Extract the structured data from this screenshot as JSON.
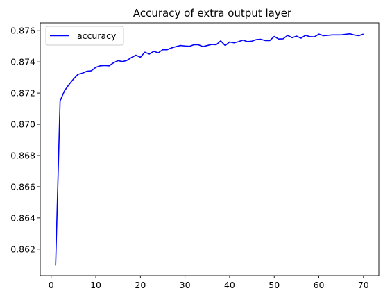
{
  "chart_data": {
    "type": "line",
    "title": "Accuracy of extra output layer",
    "xlabel": "",
    "ylabel": "",
    "xlim": [
      -2.45,
      73.45
    ],
    "ylim": [
      0.8603,
      0.8765
    ],
    "xticks": [
      0,
      10,
      20,
      30,
      40,
      50,
      60,
      70
    ],
    "yticks": [
      0.862,
      0.864,
      0.866,
      0.868,
      0.87,
      0.872,
      0.874,
      0.876
    ],
    "ytick_format": 3,
    "grid": false,
    "legend": "top-left",
    "series": [
      {
        "name": "accuracy",
        "color": "#0000ff",
        "x": [
          1,
          2,
          3,
          4,
          5,
          6,
          7,
          8,
          9,
          10,
          11,
          12,
          13,
          14,
          15,
          16,
          17,
          18,
          19,
          20,
          21,
          22,
          23,
          24,
          25,
          26,
          27,
          28,
          29,
          30,
          31,
          32,
          33,
          34,
          35,
          36,
          37,
          38,
          39,
          40,
          41,
          42,
          43,
          44,
          45,
          46,
          47,
          48,
          49,
          50,
          51,
          52,
          53,
          54,
          55,
          56,
          57,
          58,
          59,
          60,
          61,
          62,
          63,
          64,
          65,
          66,
          67,
          68,
          69,
          70
        ],
        "values": [
          0.86095,
          0.8715,
          0.87215,
          0.87255,
          0.8729,
          0.8732,
          0.87328,
          0.8734,
          0.87343,
          0.87365,
          0.87375,
          0.87377,
          0.87375,
          0.87395,
          0.87408,
          0.87402,
          0.8741,
          0.87428,
          0.87443,
          0.8743,
          0.87462,
          0.8745,
          0.87468,
          0.87458,
          0.87478,
          0.87478,
          0.8749,
          0.87498,
          0.87505,
          0.87502,
          0.875,
          0.8751,
          0.8751,
          0.87498,
          0.87505,
          0.87512,
          0.8751,
          0.87535,
          0.87505,
          0.87528,
          0.87522,
          0.8753,
          0.8754,
          0.8753,
          0.87533,
          0.87543,
          0.87545,
          0.87537,
          0.87537,
          0.87563,
          0.87547,
          0.87548,
          0.8757,
          0.87555,
          0.87565,
          0.87552,
          0.8757,
          0.87562,
          0.8756,
          0.87578,
          0.87568,
          0.8757,
          0.87573,
          0.87573,
          0.87573,
          0.87577,
          0.8758,
          0.87572,
          0.87568,
          0.87578
        ]
      }
    ]
  }
}
